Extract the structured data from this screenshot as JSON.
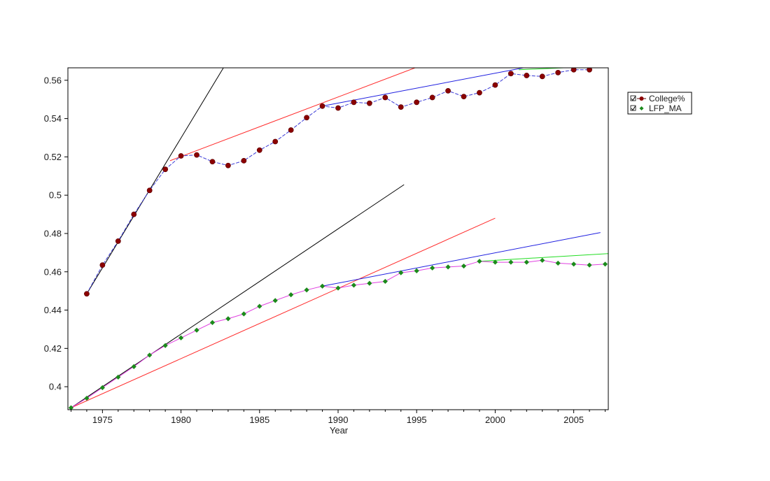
{
  "chart_data": {
    "type": "line",
    "title": "",
    "xlabel": "Year",
    "ylabel": "",
    "xlim": [
      1972.8,
      2007.2
    ],
    "ylim": [
      0.388,
      0.5665
    ],
    "x_ticks": [
      1975,
      1980,
      1985,
      1990,
      1995,
      2000,
      2005
    ],
    "y_ticks": [
      0.4,
      0.42,
      0.44,
      0.46,
      0.48,
      0.5,
      0.52,
      0.54,
      0.56
    ],
    "y_tick_labels": [
      "0.4",
      "0.42",
      "0.44",
      "0.46",
      "0.48",
      "0.5",
      "0.52",
      "0.54",
      "0.56"
    ],
    "grid": false,
    "legend_position": "right",
    "series": [
      {
        "name": "College%",
        "marker": "circle",
        "marker_color": "#8b0000",
        "line_color": "#3b3bd6",
        "x": [
          1974,
          1975,
          1976,
          1977,
          1978,
          1979,
          1980,
          1981,
          1982,
          1983,
          1984,
          1985,
          1986,
          1987,
          1988,
          1989,
          1990,
          1991,
          1992,
          1993,
          1994,
          1995,
          1996,
          1997,
          1998,
          1999,
          2000,
          2001,
          2002,
          2003,
          2004,
          2005,
          2006
        ],
        "y": [
          0.4485,
          0.4635,
          0.476,
          0.49,
          0.5025,
          0.5135,
          0.5205,
          0.521,
          0.5175,
          0.5155,
          0.518,
          0.5235,
          0.528,
          0.534,
          0.5405,
          0.5465,
          0.5455,
          0.5485,
          0.548,
          0.551,
          0.546,
          0.5485,
          0.551,
          0.5545,
          0.5515,
          0.5535,
          0.5575,
          0.5635,
          0.5625,
          0.562,
          0.564,
          0.5655,
          0.5655
        ]
      },
      {
        "name": "LFP_MA",
        "marker": "diamond",
        "marker_color": "#1b8a1b",
        "line_color": "#e040e0",
        "x": [
          1973,
          1974,
          1975,
          1976,
          1977,
          1978,
          1979,
          1980,
          1981,
          1982,
          1983,
          1984,
          1985,
          1986,
          1987,
          1988,
          1989,
          1990,
          1991,
          1992,
          1993,
          1994,
          1995,
          1996,
          1997,
          1998,
          1999,
          2000,
          2001,
          2002,
          2003,
          2004,
          2005,
          2006,
          2007
        ],
        "y": [
          0.389,
          0.394,
          0.3995,
          0.405,
          0.4105,
          0.4165,
          0.4215,
          0.4255,
          0.4295,
          0.4335,
          0.4355,
          0.438,
          0.442,
          0.445,
          0.448,
          0.4505,
          0.4525,
          0.4515,
          0.453,
          0.454,
          0.455,
          0.4595,
          0.4605,
          0.462,
          0.4625,
          0.463,
          0.4655,
          0.465,
          0.465,
          0.465,
          0.466,
          0.4645,
          0.464,
          0.4635,
          0.464
        ]
      }
    ],
    "trend_lines": [
      {
        "color": "#000000",
        "x1": 1974,
        "y1": 0.4485,
        "x2": 1982.7,
        "y2": 0.5665
      },
      {
        "color": "#ff2a2a",
        "x1": 1979.3,
        "y1": 0.518,
        "x2": 1994.9,
        "y2": 0.5665
      },
      {
        "color": "#2020e0",
        "x1": 1989,
        "y1": 0.5465,
        "x2": 2001.8,
        "y2": 0.5665
      },
      {
        "color": "#22dd22",
        "x1": 2001.5,
        "y1": 0.5655,
        "x2": 2007.2,
        "y2": 0.5675
      },
      {
        "color": "#000000",
        "x1": 1973,
        "y1": 0.389,
        "x2": 1994.2,
        "y2": 0.5055
      },
      {
        "color": "#ff2a2a",
        "x1": 1973,
        "y1": 0.389,
        "x2": 2000,
        "y2": 0.488
      },
      {
        "color": "#2020e0",
        "x1": 1989,
        "y1": 0.4525,
        "x2": 2006.7,
        "y2": 0.4805
      },
      {
        "color": "#22dd22",
        "x1": 1999,
        "y1": 0.4655,
        "x2": 2007.2,
        "y2": 0.4695
      }
    ]
  }
}
